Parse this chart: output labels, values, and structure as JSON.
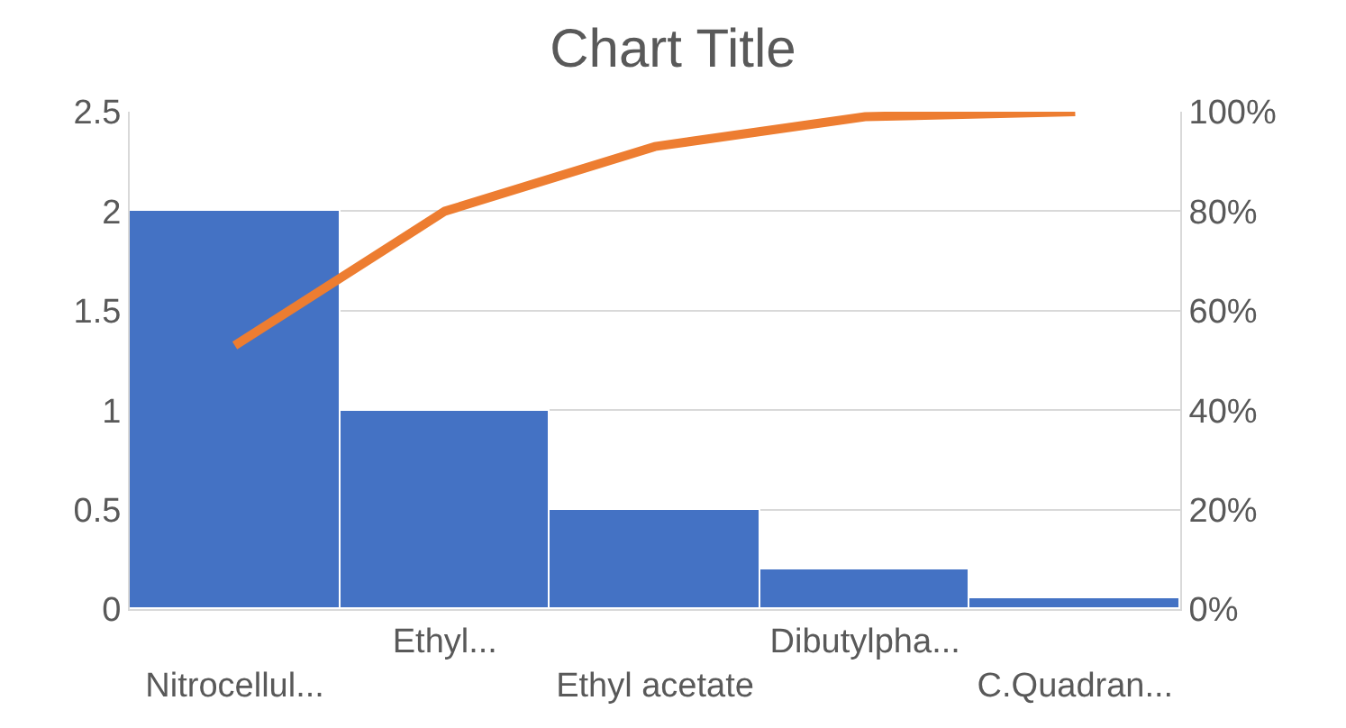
{
  "chart_data": {
    "type": "bar",
    "title": "Chart Title",
    "categories": [
      "Nitrocellul...",
      "Ethyl...",
      "Ethyl acetate",
      "Dibutylpha...",
      "C.Quadran..."
    ],
    "series": [
      {
        "color": "#4472c4",
        "values": [
          2,
          1,
          0.5,
          0.2,
          0.05
        ]
      },
      {
        "type": "line",
        "axis": "y2",
        "color": "#ed7d31",
        "values": [
          53,
          80,
          93,
          99,
          100
        ]
      }
    ],
    "ylim": [
      0,
      2.5
    ],
    "yticks": [
      0,
      0.5,
      1,
      1.5,
      2,
      2.5
    ],
    "y2lim": [
      0,
      100
    ],
    "y2ticks": [
      {
        "value": 0,
        "label": "0%"
      },
      {
        "value": 20,
        "label": "20%"
      },
      {
        "value": 40,
        "label": "40%"
      },
      {
        "value": 60,
        "label": "60%"
      },
      {
        "value": 80,
        "label": "80%"
      },
      {
        "value": 100,
        "label": "100%"
      }
    ],
    "grid": "y",
    "marker": "none",
    "line_style": "solid"
  }
}
